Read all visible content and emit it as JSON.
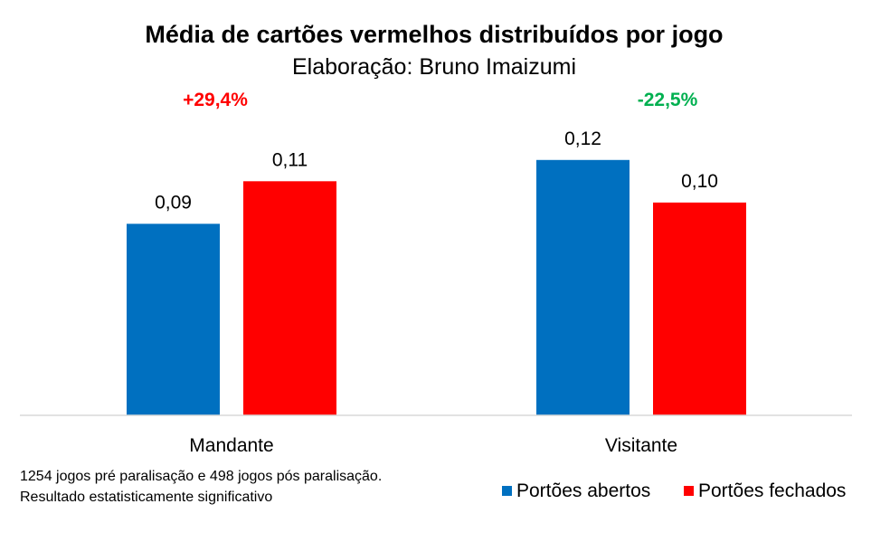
{
  "chart_data": {
    "type": "bar",
    "title": "Média de cartões vermelhos distribuídos por jogo",
    "subtitle": "Elaboração: Bruno Imaizumi",
    "categories": [
      "Mandante",
      "Visitante"
    ],
    "series": [
      {
        "name": "Portões abertos",
        "color": "#0070C0",
        "values": [
          0.09,
          0.12
        ],
        "labels": [
          "0,09",
          "0,12"
        ]
      },
      {
        "name": "Portões fechados",
        "color": "#FF0000",
        "values": [
          0.11,
          0.1
        ],
        "labels": [
          "0,11",
          "0,10"
        ]
      }
    ],
    "changes": [
      {
        "text": "+29,4%",
        "color": "#FF0000"
      },
      {
        "text": "-22,5%",
        "color": "#00B050"
      }
    ],
    "ylim": [
      0,
      0.145
    ],
    "legend_position": "bottom-right",
    "grid": false
  },
  "notes": {
    "line1": "1254 jogos pré paralisação e 498 jogos pós paralisação.",
    "line2": "Resultado estatisticamente significativo"
  }
}
